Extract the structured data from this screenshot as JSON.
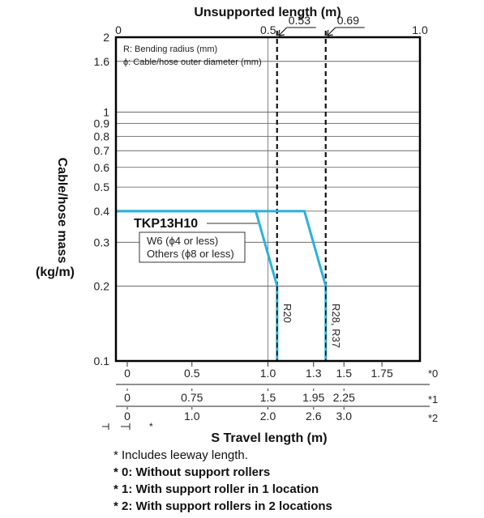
{
  "chart_data": {
    "type": "line",
    "top_axis": {
      "label": "Unsupported length (m)",
      "range": [
        0,
        1.0
      ],
      "ticks": [
        {
          "value": 0,
          "label": "0"
        },
        {
          "value": 0.5,
          "label": "0.5"
        },
        {
          "value": 1.0,
          "label": "1.0"
        }
      ],
      "markers": [
        {
          "value": 0.53,
          "label": "0.53"
        },
        {
          "value": 0.69,
          "label": "0.69"
        }
      ]
    },
    "y_axis": {
      "label_line1": "Cable/hose mass",
      "label_line2": "(kg/m)",
      "scale": "log",
      "range": [
        0.1,
        2
      ],
      "ticks": [
        {
          "value": 2,
          "label": "2"
        },
        {
          "value": 1.6,
          "label": "1.6"
        },
        {
          "value": 1,
          "label": "1"
        },
        {
          "value": 0.9,
          "label": "0.9"
        },
        {
          "value": 0.8,
          "label": "0.8"
        },
        {
          "value": 0.7,
          "label": "0.7"
        },
        {
          "value": 0.6,
          "label": "0.6"
        },
        {
          "value": 0.5,
          "label": "0.5"
        },
        {
          "value": 0.4,
          "label": "0.4"
        },
        {
          "value": 0.3,
          "label": "0.3"
        },
        {
          "value": 0.2,
          "label": "0.2"
        },
        {
          "value": 0.1,
          "label": "0.1"
        }
      ]
    },
    "legend_box": {
      "line1": "R: Bending radius (mm)",
      "line2": "ϕ: Cable/hose outer diameter (mm)"
    },
    "annotation": {
      "title": "TKP13H10",
      "line1": "W6 (ϕ4 or less)",
      "line2": "Others (ϕ8 or less)"
    },
    "series": [
      {
        "name": "R20",
        "points": [
          [
            0,
            0.4
          ],
          [
            0.46,
            0.4
          ],
          [
            0.53,
            0.2
          ],
          [
            0.53,
            0.1
          ]
        ],
        "color": "#2bb0dd"
      },
      {
        "name": "R28, R37",
        "points": [
          [
            0,
            0.4
          ],
          [
            0.62,
            0.4
          ],
          [
            0.69,
            0.2
          ],
          [
            0.69,
            0.1
          ]
        ],
        "color": "#2bb0dd"
      }
    ],
    "bottom_scales": [
      {
        "tag": "*0",
        "ticks": [
          {
            "value": 0,
            "label": "0"
          },
          {
            "value": 0.5,
            "label": "0.5"
          },
          {
            "value": 1.0,
            "label": "1.0"
          },
          {
            "value": 1.3,
            "label": "1.3"
          },
          {
            "value": 1.5,
            "label": "1.5"
          },
          {
            "value": 1.75,
            "label": "1.75"
          }
        ]
      },
      {
        "tag": "*1",
        "ticks": [
          {
            "value": 0,
            "label": "0"
          },
          {
            "value": 0.75,
            "label": "0.75"
          },
          {
            "value": 1.5,
            "label": "1.5"
          },
          {
            "value": 1.95,
            "label": "1.95"
          },
          {
            "value": 2.25,
            "label": "2.25"
          }
        ]
      },
      {
        "tag": "*2",
        "ticks": [
          {
            "value": 0,
            "label": "0"
          },
          {
            "value": 1.0,
            "label": "1.0"
          },
          {
            "value": 2.0,
            "label": "2.0"
          },
          {
            "value": 2.6,
            "label": "2.6"
          },
          {
            "value": 3.0,
            "label": "3.0"
          }
        ]
      }
    ],
    "leeway_mark": "*",
    "x_label": "S Travel length (m)",
    "grid": true
  },
  "notes": [
    {
      "text": "* Includes leeway length.",
      "bold": false
    },
    {
      "text": "* 0: Without support rollers",
      "bold": true
    },
    {
      "text": "* 1: With support roller in 1 location",
      "bold": true
    },
    {
      "text": "* 2: With support rollers in 2 locations",
      "bold": true
    }
  ]
}
